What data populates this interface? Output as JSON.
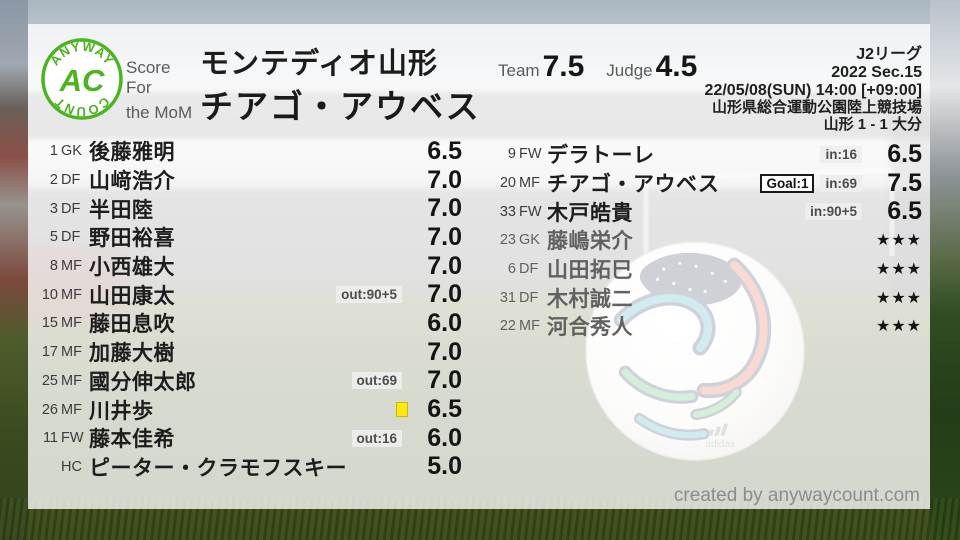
{
  "logo": {
    "arc_top": "ANYWAY",
    "arc_bottom": "COUNT",
    "monogram": "AC"
  },
  "header": {
    "score_for_label": "Score For",
    "team_name": "モンテディオ山形",
    "mom_label": "the MoM",
    "mom_name": "チアゴ・アウベス",
    "team_label": "Team",
    "team_score": "7.5",
    "judge_label": "Judge",
    "judge_score": "4.5"
  },
  "match": {
    "league": "J2リーグ",
    "season": "2022 Sec.15",
    "datetime": "22/05/08(SUN) 14:00 [+09:00]",
    "venue": "山形県総合運動公園陸上競技場",
    "result": "山形 1 - 1 大分"
  },
  "starters": [
    {
      "num": "1",
      "pos": "GK",
      "name": "後藤雅明",
      "rating": "6.5"
    },
    {
      "num": "2",
      "pos": "DF",
      "name": "山﨑浩介",
      "rating": "7.0"
    },
    {
      "num": "3",
      "pos": "DF",
      "name": "半田陸",
      "rating": "7.0"
    },
    {
      "num": "5",
      "pos": "DF",
      "name": "野田裕喜",
      "rating": "7.0"
    },
    {
      "num": "8",
      "pos": "MF",
      "name": "小西雄大",
      "rating": "7.0"
    },
    {
      "num": "10",
      "pos": "MF",
      "name": "山田康太",
      "rating": "7.0",
      "tags": [
        "out:90+5"
      ]
    },
    {
      "num": "15",
      "pos": "MF",
      "name": "藤田息吹",
      "rating": "6.0"
    },
    {
      "num": "17",
      "pos": "MF",
      "name": "加藤大樹",
      "rating": "7.0"
    },
    {
      "num": "25",
      "pos": "MF",
      "name": "國分伸太郎",
      "rating": "7.0",
      "tags": [
        "out:69"
      ]
    },
    {
      "num": "26",
      "pos": "MF",
      "name": "川井歩",
      "rating": "6.5",
      "yellow_card": true
    },
    {
      "num": "11",
      "pos": "FW",
      "name": "藤本佳希",
      "rating": "6.0",
      "tags": [
        "out:16"
      ]
    },
    {
      "num": "",
      "pos": "HC",
      "name": "ピーター・クラモフスキー",
      "rating": "5.0"
    }
  ],
  "subs": [
    {
      "num": "9",
      "pos": "FW",
      "name": "デラトーレ",
      "rating": "6.5",
      "tags": [
        "in:16"
      ]
    },
    {
      "num": "20",
      "pos": "MF",
      "name": "チアゴ・アウベス",
      "rating": "7.5",
      "goal": "Goal:1",
      "tags": [
        "in:69"
      ]
    },
    {
      "num": "33",
      "pos": "FW",
      "name": "木戸皓貴",
      "rating": "6.5",
      "tags": [
        "in:90+5"
      ]
    },
    {
      "num": "23",
      "pos": "GK",
      "name": "藤嶋栄介",
      "rating": "★★★",
      "unused": true
    },
    {
      "num": "6",
      "pos": "DF",
      "name": "山田拓巳",
      "rating": "★★★",
      "unused": true
    },
    {
      "num": "31",
      "pos": "DF",
      "name": "木村誠二",
      "rating": "★★★",
      "unused": true
    },
    {
      "num": "22",
      "pos": "MF",
      "name": "河合秀人",
      "rating": "★★★",
      "unused": true
    }
  ],
  "footer": {
    "credit": "created by anywaycount.com"
  },
  "background": {
    "ball_brand": "adidas"
  },
  "colors": {
    "brand_green": "#4cb321",
    "yellow_card": "#ffe714",
    "text_dark": "#1d1d1d",
    "text_gray": "#5b5b5b",
    "badge_bg": "#eeeeee"
  }
}
